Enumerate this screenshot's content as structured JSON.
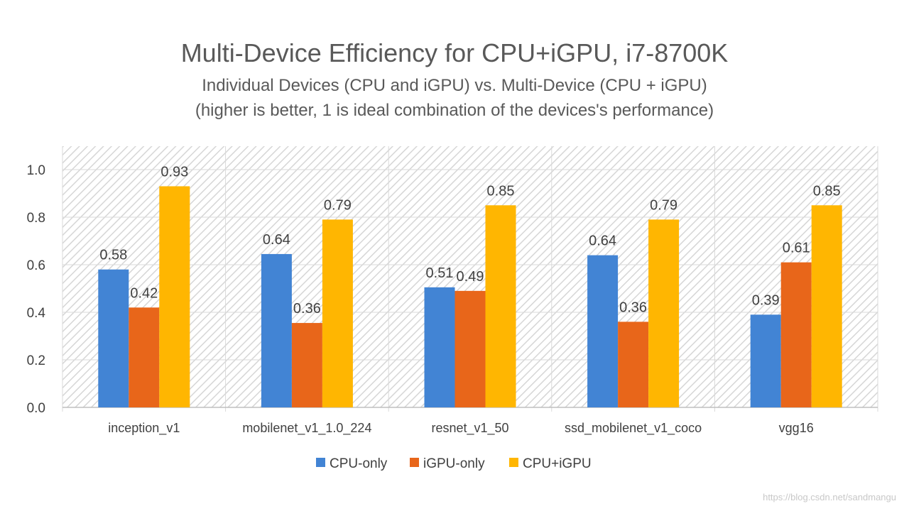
{
  "chart_data": {
    "type": "bar",
    "title": "Multi-Device Efficiency for CPU+iGPU, i7-8700K",
    "subtitle_lines": [
      "Individual Devices (CPU and iGPU) vs. Multi-Device (CPU + iGPU)",
      "(higher is better, 1 is ideal combination of the devices's performance)"
    ],
    "categories": [
      "inception_v1",
      "mobilenet_v1_1.0_224",
      "resnet_v1_50",
      "ssd_mobilenet_v1_coco",
      "vgg16"
    ],
    "series": [
      {
        "name": "CPU-only",
        "color": "#4284d4",
        "values": [
          0.58,
          0.645,
          0.505,
          0.64,
          0.39
        ],
        "labels": [
          "0.58",
          "0.64",
          "0.51",
          "0.64",
          "0.39"
        ]
      },
      {
        "name": "iGPU-only",
        "color": "#e8661a",
        "values": [
          0.42,
          0.355,
          0.49,
          0.36,
          0.61
        ],
        "labels": [
          "0.42",
          "0.36",
          "0.49",
          "0.36",
          "0.61"
        ]
      },
      {
        "name": "CPU+iGPU",
        "color": "#ffb601",
        "values": [
          0.93,
          0.79,
          0.85,
          0.79,
          0.85
        ],
        "labels": [
          "0.93",
          "0.79",
          "0.85",
          "0.79",
          "0.85"
        ]
      }
    ],
    "ylim": [
      0,
      1.0
    ],
    "yticks": [
      0.0,
      0.2,
      0.4,
      0.6,
      0.8,
      1.0
    ],
    "ytick_labels": [
      "0.0",
      "0.2",
      "0.4",
      "0.6",
      "0.8",
      "1.0"
    ],
    "grid": true,
    "legend_position": "bottom"
  },
  "watermark": "https://blog.csdn.net/sandmangu"
}
